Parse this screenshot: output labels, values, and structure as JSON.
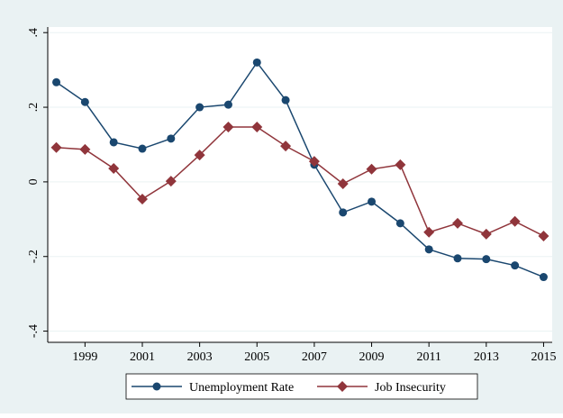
{
  "chart_data": {
    "type": "line",
    "x": [
      1998,
      1999,
      2000,
      2001,
      2002,
      2003,
      2004,
      2005,
      2006,
      2007,
      2008,
      2009,
      2010,
      2011,
      2012,
      2013,
      2014,
      2015
    ],
    "series": [
      {
        "name": "Unemployment Rate",
        "color": "#1a476f",
        "marker": "circle",
        "values": [
          0.267,
          0.214,
          0.106,
          0.089,
          0.116,
          0.2,
          0.207,
          0.32,
          0.219,
          0.046,
          -0.082,
          -0.053,
          -0.111,
          -0.181,
          -0.205,
          -0.207,
          -0.224,
          -0.255
        ]
      },
      {
        "name": "Job Insecurity",
        "color": "#90353b",
        "marker": "diamond",
        "values": [
          0.092,
          0.087,
          0.036,
          -0.046,
          0.002,
          0.072,
          0.147,
          0.147,
          0.096,
          0.055,
          -0.005,
          0.034,
          0.046,
          -0.135,
          -0.111,
          -0.14,
          -0.106,
          -0.145
        ]
      }
    ],
    "xlim": [
      1997.7,
      2015.3
    ],
    "xticks": [
      1999,
      2001,
      2003,
      2005,
      2007,
      2009,
      2011,
      2013,
      2015
    ],
    "ylim": [
      -0.43,
      0.415
    ],
    "yticks": [
      {
        "value": -0.4,
        "label": "-.4"
      },
      {
        "value": -0.2,
        "label": "-.2"
      },
      0,
      {
        "value": 0.2,
        "label": ".2"
      },
      {
        "value": 0.4,
        "label": ".4"
      }
    ],
    "grid": true,
    "legend": "bottom"
  }
}
